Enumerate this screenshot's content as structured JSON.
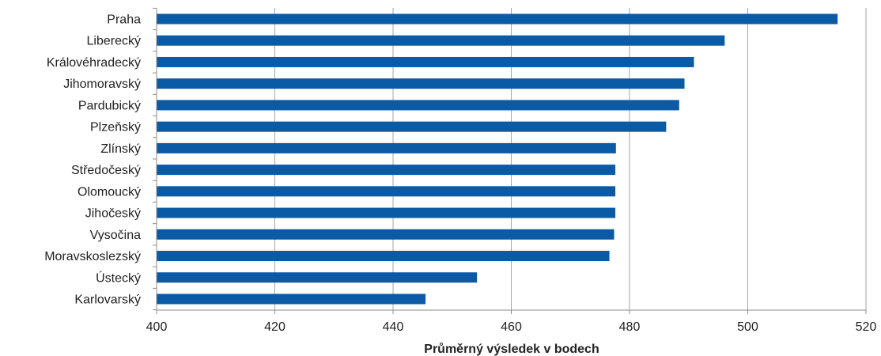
{
  "chart_data": {
    "type": "bar",
    "orientation": "horizontal",
    "categories": [
      "Praha",
      "Liberecký",
      "Královéhradecký",
      "Jihomoravský",
      "Pardubický",
      "Plzeňský",
      "Zlínský",
      "Středočeský",
      "Olomoucký",
      "Jihočeský",
      "Vysočina",
      "Moravskoslezský",
      "Ústecký",
      "Karlovarský"
    ],
    "values": [
      515.2,
      496.1,
      490.9,
      489.3,
      488.4,
      486.2,
      477.7,
      477.6,
      477.6,
      477.6,
      477.4,
      476.6,
      454.2,
      445.5
    ],
    "title": "",
    "xlabel": "Průměrný výsledek v bodech",
    "ylabel": "",
    "xlim": [
      400,
      520
    ],
    "xticks": [
      400,
      420,
      440,
      460,
      480,
      500,
      520
    ],
    "grid": "vertical",
    "legend": "none",
    "bar_color": "#0b5aa6"
  }
}
